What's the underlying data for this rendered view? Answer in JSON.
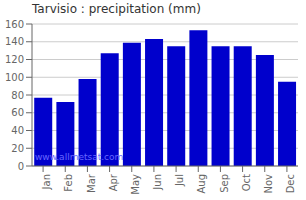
{
  "chart_data": {
    "type": "bar",
    "title": "Tarvisio : precipitation (mm)",
    "categories": [
      "Jan",
      "Feb",
      "Mar",
      "Apr",
      "May",
      "Jun",
      "Jul",
      "Aug",
      "Sep",
      "Oct",
      "Nov",
      "Dec"
    ],
    "values": [
      77,
      72,
      98,
      127,
      139,
      143,
      135,
      153,
      135,
      135,
      125,
      95
    ],
    "color": "#0000CC",
    "ylim": [
      0,
      160
    ],
    "yticks": [
      0,
      20,
      40,
      60,
      80,
      100,
      120,
      140,
      160
    ],
    "grid": true,
    "annotations": [
      {
        "text": "www.allmetsat.com",
        "color": "#6666ff"
      }
    ]
  }
}
